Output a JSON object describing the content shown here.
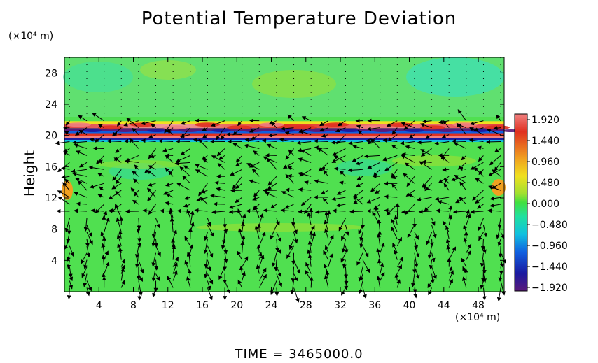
{
  "chart_data": {
    "type": "heatmap",
    "title": "Potential Temperature Deviation",
    "time_label": "TIME = 3465000.0",
    "ylabel": "Height",
    "y_unit": "(×10⁴ m)",
    "x_unit": "(×10⁴ m)",
    "xlim": [
      0,
      51
    ],
    "ylim": [
      0,
      30
    ],
    "x_ticks": [
      "4",
      "8",
      "12",
      "16",
      "20",
      "24",
      "28",
      "32",
      "36",
      "40",
      "44",
      "48"
    ],
    "x_tick_values": [
      4,
      8,
      12,
      16,
      20,
      24,
      28,
      32,
      36,
      40,
      44,
      48
    ],
    "y_ticks": [
      "4",
      "8",
      "12",
      "16",
      "20",
      "24",
      "28"
    ],
    "y_tick_values": [
      4,
      8,
      12,
      16,
      20,
      24,
      28
    ],
    "colorbar": {
      "labels": [
        "1.920",
        "1.440",
        "0.960",
        "0.480",
        "0.000",
        "−0.480",
        "−0.960",
        "−1.440",
        "−1.920"
      ],
      "values": [
        1.92,
        1.44,
        0.96,
        0.48,
        0.0,
        -0.48,
        -0.96,
        -1.44,
        -1.92
      ],
      "range": [
        -1.92,
        1.92
      ],
      "colors": [
        "#5a1a7a",
        "#1a1aa0",
        "#1060e0",
        "#10c0e0",
        "#20e0a0",
        "#40e040",
        "#a0e030",
        "#f0e020",
        "#f0a020",
        "#e03020",
        "#f08080"
      ]
    },
    "background_value": 0.2,
    "bands": [
      {
        "y": 21.2,
        "value": 1.6
      },
      {
        "y": 20.6,
        "value": -1.7
      },
      {
        "y": 20.1,
        "value": 1.2
      },
      {
        "y": 19.6,
        "value": -0.8
      }
    ],
    "vector_field": "wind vectors on regular grid"
  }
}
